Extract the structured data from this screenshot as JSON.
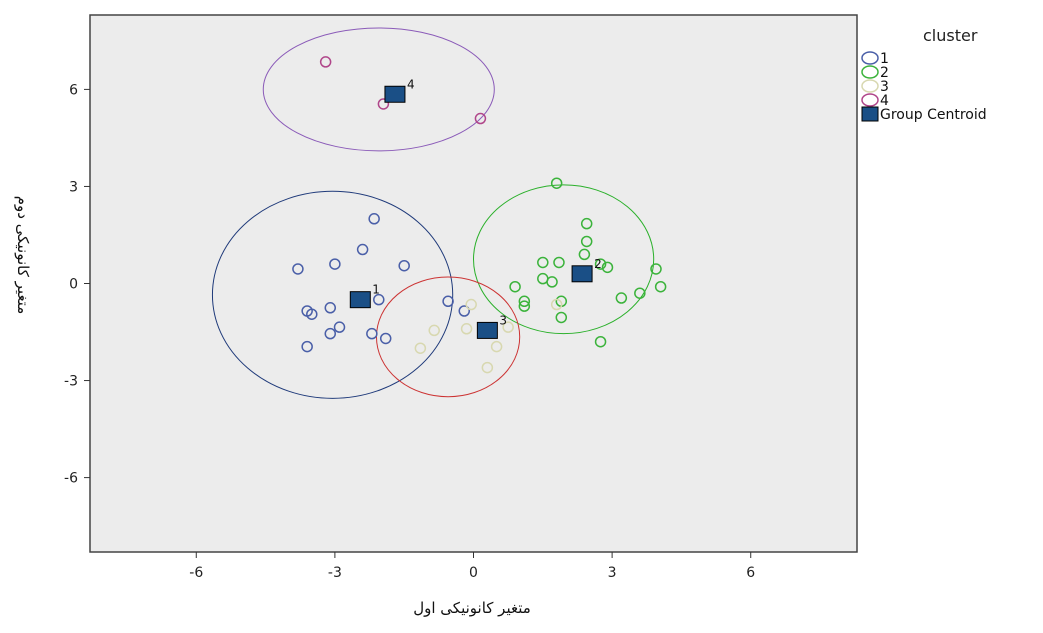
{
  "chart_data": {
    "type": "scatter",
    "title": "",
    "xlabel": "متغیر کانونیکی اول",
    "ylabel": "متغیر کانونیکی دوم",
    "xlim": [
      -8.3,
      8.3
    ],
    "ylim": [
      -8.3,
      8.3
    ],
    "xticks": [
      -6,
      -3,
      0,
      3,
      6
    ],
    "yticks": [
      -6,
      -3,
      0,
      3,
      6
    ],
    "grid": false,
    "legend_title": "cluster",
    "legend_position": "right",
    "series": [
      {
        "name": "1",
        "color": "#4a5fa8",
        "points": [
          [
            -3.8,
            0.45
          ],
          [
            -3.0,
            0.6
          ],
          [
            -2.4,
            1.05
          ],
          [
            -2.15,
            2.0
          ],
          [
            -1.5,
            0.55
          ],
          [
            -3.6,
            -0.85
          ],
          [
            -3.5,
            -0.95
          ],
          [
            -3.1,
            -0.75
          ],
          [
            -2.9,
            -1.35
          ],
          [
            -2.05,
            -0.5
          ],
          [
            -2.2,
            -1.55
          ],
          [
            -1.9,
            -1.7
          ],
          [
            -3.1,
            -1.55
          ],
          [
            -3.6,
            -1.95
          ],
          [
            -0.55,
            -0.55
          ],
          [
            -0.2,
            -0.85
          ]
        ]
      },
      {
        "name": "2",
        "color": "#3bb33b",
        "points": [
          [
            1.8,
            3.1
          ],
          [
            2.45,
            1.85
          ],
          [
            2.45,
            1.3
          ],
          [
            2.4,
            0.9
          ],
          [
            2.75,
            0.6
          ],
          [
            2.9,
            0.5
          ],
          [
            1.5,
            0.65
          ],
          [
            1.85,
            0.65
          ],
          [
            1.5,
            0.15
          ],
          [
            1.7,
            0.05
          ],
          [
            1.9,
            -0.55
          ],
          [
            1.1,
            -0.55
          ],
          [
            0.9,
            -0.1
          ],
          [
            1.9,
            -1.05
          ],
          [
            3.2,
            -0.45
          ],
          [
            3.6,
            -0.3
          ],
          [
            3.95,
            0.45
          ],
          [
            4.05,
            -0.1
          ],
          [
            2.75,
            -1.8
          ],
          [
            1.1,
            -0.7
          ]
        ]
      },
      {
        "name": "3",
        "color": "#d8d8b0",
        "points": [
          [
            -0.85,
            -1.45
          ],
          [
            -1.15,
            -2.0
          ],
          [
            -0.05,
            -0.65
          ],
          [
            -0.15,
            -1.4
          ],
          [
            0.5,
            -1.95
          ],
          [
            0.3,
            -2.6
          ],
          [
            0.75,
            -1.35
          ],
          [
            1.8,
            -0.65
          ]
        ]
      },
      {
        "name": "4",
        "color": "#b0468a",
        "points": [
          [
            -3.2,
            6.85
          ],
          [
            -1.95,
            5.55
          ],
          [
            0.15,
            5.1
          ]
        ]
      }
    ],
    "centroids": {
      "name": "Group Centroid",
      "color": "#1a4f86",
      "points": [
        {
          "label": "1",
          "x": -2.45,
          "y": -0.5
        },
        {
          "label": "2",
          "x": 2.35,
          "y": 0.3
        },
        {
          "label": "3",
          "x": 0.3,
          "y": -1.45
        },
        {
          "label": "4",
          "x": -1.7,
          "y": 5.85
        }
      ]
    },
    "ellipses": [
      {
        "cluster": "1",
        "cx": -3.05,
        "cy": -0.35,
        "rx": 2.6,
        "ry": 3.2,
        "color": "#1f3a7a"
      },
      {
        "cluster": "2",
        "cx": 1.95,
        "cy": 0.75,
        "rx": 1.95,
        "ry": 2.3,
        "color": "#2ab02a"
      },
      {
        "cluster": "3",
        "cx": -0.55,
        "cy": -1.65,
        "rx": 1.55,
        "ry": 1.85,
        "color": "#cc3333"
      },
      {
        "cluster": "4",
        "cx": -2.05,
        "cy": 6.0,
        "rx": 2.5,
        "ry": 1.9,
        "color": "#8a5ab8"
      }
    ]
  }
}
